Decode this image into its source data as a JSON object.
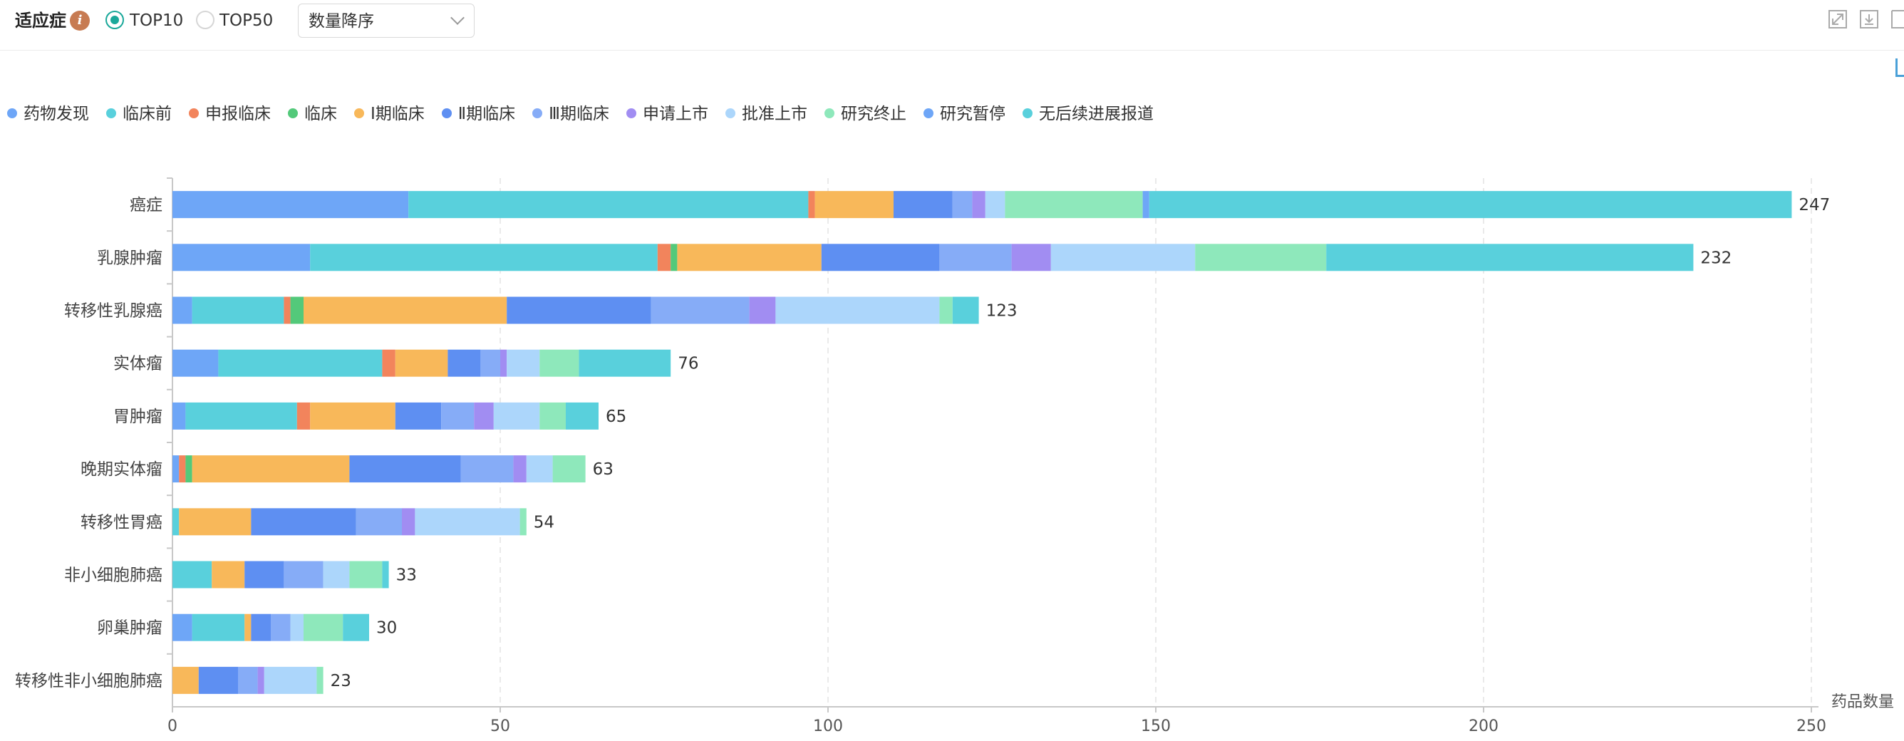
{
  "toolbar": {
    "title": "适应症",
    "info_icon": "info-icon",
    "radio_top10": "TOP10",
    "radio_top50": "TOP50",
    "selected_radio": "TOP10",
    "sort_value": "数量降序",
    "tools": [
      "expand-icon",
      "download-icon",
      "panel-icon"
    ]
  },
  "colors": {
    "accent": "#1aa89a",
    "info": "#c77b52"
  },
  "chart_data": {
    "type": "bar",
    "orientation": "horizontal",
    "stacked": true,
    "categories": [
      "癌症",
      "乳腺肿瘤",
      "转移性乳腺癌",
      "实体瘤",
      "胃肿瘤",
      "晚期实体瘤",
      "转移性胃癌",
      "非小细胞肺癌",
      "卵巢肿瘤",
      "转移性非小细胞肺癌"
    ],
    "totals": [
      247,
      232,
      123,
      76,
      65,
      63,
      54,
      33,
      30,
      23
    ],
    "xlabel": "药品数量",
    "xlim": [
      0,
      250
    ],
    "xticks": [
      0,
      50,
      100,
      150,
      200,
      250
    ],
    "grid": true,
    "legend_position": "top-left",
    "series": [
      {
        "name": "药物发现",
        "color": "#6ea6f7",
        "values": [
          36,
          21,
          3,
          7,
          2,
          1,
          0,
          0,
          3,
          0
        ]
      },
      {
        "name": "临床前",
        "color": "#59d0dc",
        "values": [
          61,
          53,
          14,
          25,
          17,
          0,
          1,
          6,
          8,
          0
        ]
      },
      {
        "name": "申报临床",
        "color": "#f2845c",
        "values": [
          1,
          2,
          1,
          2,
          2,
          1,
          0,
          0,
          0,
          0
        ]
      },
      {
        "name": "临床",
        "color": "#53c97a",
        "values": [
          0,
          1,
          2,
          0,
          0,
          1,
          0,
          0,
          0,
          0
        ]
      },
      {
        "name": "Ⅰ期临床",
        "color": "#f8b85a",
        "values": [
          12,
          22,
          31,
          8,
          13,
          24,
          11,
          5,
          1,
          4
        ]
      },
      {
        "name": "Ⅱ期临床",
        "color": "#5e8ff2",
        "values": [
          9,
          18,
          22,
          5,
          7,
          17,
          16,
          6,
          3,
          6
        ]
      },
      {
        "name": "Ⅲ期临床",
        "color": "#86acf7",
        "values": [
          3,
          11,
          15,
          3,
          5,
          8,
          7,
          6,
          3,
          3
        ]
      },
      {
        "name": "申请上市",
        "color": "#a18df2",
        "values": [
          2,
          6,
          4,
          1,
          3,
          2,
          2,
          0,
          0,
          1
        ]
      },
      {
        "name": "批准上市",
        "color": "#acd6fb",
        "values": [
          3,
          22,
          25,
          5,
          7,
          4,
          16,
          4,
          2,
          8
        ]
      },
      {
        "name": "研究终止",
        "color": "#8ee8bb",
        "values": [
          21,
          20,
          2,
          6,
          4,
          5,
          1,
          5,
          6,
          1
        ]
      },
      {
        "name": "研究暂停",
        "color": "#6ea6f7",
        "values": [
          1,
          0,
          0,
          0,
          0,
          0,
          0,
          0,
          0,
          0
        ]
      },
      {
        "name": "无后续进展报道",
        "color": "#59d0dc",
        "values": [
          98,
          56,
          4,
          14,
          5,
          0,
          0,
          1,
          4,
          0
        ]
      }
    ]
  }
}
